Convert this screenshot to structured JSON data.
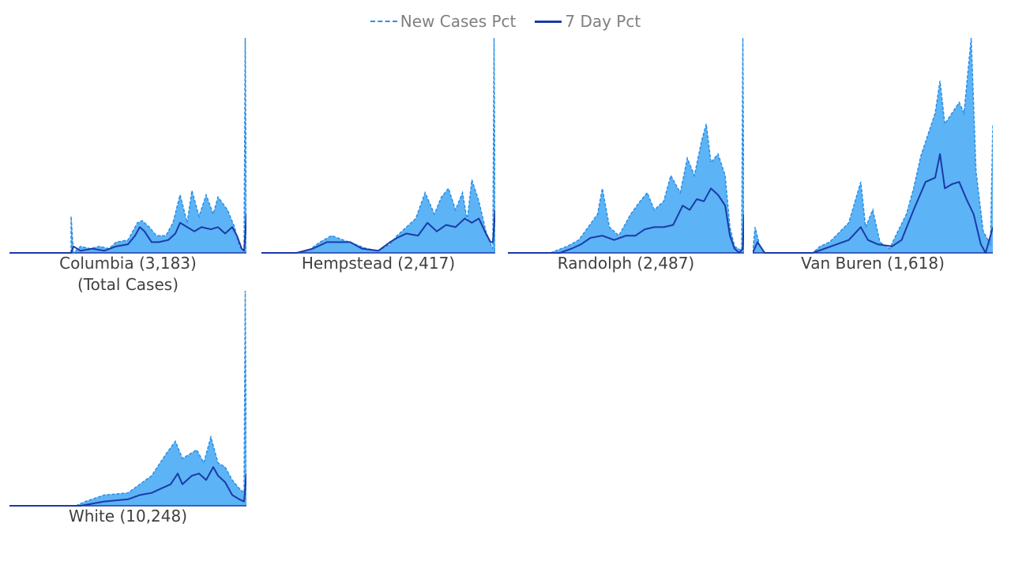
{
  "legend": {
    "new_cases_label": "New Cases Pct",
    "seven_day_label": "7 Day Pct"
  },
  "colors": {
    "area_fill": "#5cb3f5",
    "new_cases_line": "#2b8fe6",
    "seven_day_line": "#1c3aa8",
    "baseline": "#1c3aa8",
    "label_text": "#404040",
    "legend_text": "#7f7f7f"
  },
  "chart_data": [
    {
      "type": "area",
      "county": "Columbia",
      "total_cases": "3,183",
      "label": "Columbia (3,183)",
      "sublabel": "(Total Cases)",
      "series": [
        {
          "name": "New Cases Pct",
          "keys": [
            [
              0.0,
              0
            ],
            [
              0.09,
              0
            ],
            [
              0.1,
              0.2
            ],
            [
              0.11,
              0
            ],
            [
              0.18,
              0
            ],
            [
              0.26,
              0
            ],
            [
              0.26,
              17
            ],
            [
              0.27,
              0
            ],
            [
              0.3,
              3
            ],
            [
              0.34,
              2
            ],
            [
              0.38,
              3
            ],
            [
              0.42,
              2
            ],
            [
              0.45,
              5
            ],
            [
              0.5,
              6
            ],
            [
              0.54,
              14
            ],
            [
              0.56,
              15
            ],
            [
              0.59,
              12
            ],
            [
              0.62,
              8
            ],
            [
              0.66,
              8
            ],
            [
              0.69,
              14
            ],
            [
              0.72,
              27
            ],
            [
              0.75,
              14
            ],
            [
              0.77,
              29
            ],
            [
              0.8,
              17
            ],
            [
              0.83,
              27
            ],
            [
              0.86,
              18
            ],
            [
              0.88,
              26
            ],
            [
              0.92,
              20
            ],
            [
              0.95,
              12
            ],
            [
              0.97,
              3
            ],
            [
              0.99,
              1
            ],
            [
              0.995,
              100
            ],
            [
              1.0,
              0
            ]
          ]
        },
        {
          "name": "7 Day Pct",
          "keys": [
            [
              0.0,
              0
            ],
            [
              0.26,
              0
            ],
            [
              0.27,
              3
            ],
            [
              0.3,
              1
            ],
            [
              0.35,
              2
            ],
            [
              0.4,
              1
            ],
            [
              0.45,
              3
            ],
            [
              0.5,
              4
            ],
            [
              0.53,
              8
            ],
            [
              0.55,
              12
            ],
            [
              0.57,
              10
            ],
            [
              0.6,
              5
            ],
            [
              0.63,
              5
            ],
            [
              0.67,
              6
            ],
            [
              0.7,
              9
            ],
            [
              0.72,
              14
            ],
            [
              0.75,
              12
            ],
            [
              0.78,
              10
            ],
            [
              0.81,
              12
            ],
            [
              0.85,
              11
            ],
            [
              0.88,
              12
            ],
            [
              0.91,
              9
            ],
            [
              0.94,
              12
            ],
            [
              0.96,
              8
            ],
            [
              0.98,
              2
            ],
            [
              0.99,
              1
            ],
            [
              0.995,
              8
            ],
            [
              1.0,
              18
            ]
          ]
        }
      ]
    },
    {
      "type": "area",
      "county": "Hempstead",
      "total_cases": "2,417",
      "label": "Hempstead (2,417)",
      "sublabel": "",
      "series": [
        {
          "name": "New Cases Pct",
          "keys": [
            [
              0.0,
              0
            ],
            [
              0.15,
              0
            ],
            [
              0.2,
              1
            ],
            [
              0.25,
              5
            ],
            [
              0.3,
              8
            ],
            [
              0.35,
              6
            ],
            [
              0.4,
              4
            ],
            [
              0.45,
              2
            ],
            [
              0.5,
              1
            ],
            [
              0.55,
              4
            ],
            [
              0.58,
              8
            ],
            [
              0.62,
              12
            ],
            [
              0.66,
              16
            ],
            [
              0.7,
              28
            ],
            [
              0.74,
              18
            ],
            [
              0.77,
              26
            ],
            [
              0.8,
              30
            ],
            [
              0.83,
              20
            ],
            [
              0.86,
              28
            ],
            [
              0.88,
              15
            ],
            [
              0.9,
              34
            ],
            [
              0.93,
              24
            ],
            [
              0.96,
              10
            ],
            [
              0.98,
              4
            ],
            [
              0.99,
              2
            ],
            [
              0.995,
              100
            ],
            [
              1.0,
              0
            ]
          ]
        },
        {
          "name": "7 Day Pct",
          "keys": [
            [
              0.0,
              0
            ],
            [
              0.15,
              0
            ],
            [
              0.22,
              2
            ],
            [
              0.28,
              5
            ],
            [
              0.33,
              5
            ],
            [
              0.38,
              5
            ],
            [
              0.43,
              2
            ],
            [
              0.5,
              1
            ],
            [
              0.55,
              5
            ],
            [
              0.58,
              7
            ],
            [
              0.62,
              9
            ],
            [
              0.67,
              8
            ],
            [
              0.71,
              14
            ],
            [
              0.75,
              10
            ],
            [
              0.79,
              13
            ],
            [
              0.83,
              12
            ],
            [
              0.87,
              16
            ],
            [
              0.9,
              14
            ],
            [
              0.93,
              16
            ],
            [
              0.96,
              9
            ],
            [
              0.98,
              5
            ],
            [
              0.99,
              5
            ],
            [
              1.0,
              20
            ]
          ]
        }
      ]
    },
    {
      "type": "area",
      "county": "Randolph",
      "total_cases": "2,487",
      "label": "Randolph (2,487)",
      "sublabel": "",
      "series": [
        {
          "name": "New Cases Pct",
          "keys": [
            [
              0.0,
              0
            ],
            [
              0.18,
              0
            ],
            [
              0.25,
              3
            ],
            [
              0.3,
              6
            ],
            [
              0.34,
              12
            ],
            [
              0.38,
              18
            ],
            [
              0.4,
              30
            ],
            [
              0.43,
              12
            ],
            [
              0.47,
              8
            ],
            [
              0.52,
              18
            ],
            [
              0.56,
              24
            ],
            [
              0.59,
              28
            ],
            [
              0.62,
              20
            ],
            [
              0.66,
              24
            ],
            [
              0.69,
              36
            ],
            [
              0.73,
              28
            ],
            [
              0.76,
              44
            ],
            [
              0.79,
              36
            ],
            [
              0.82,
              52
            ],
            [
              0.84,
              60
            ],
            [
              0.86,
              42
            ],
            [
              0.89,
              46
            ],
            [
              0.92,
              36
            ],
            [
              0.94,
              12
            ],
            [
              0.96,
              3
            ],
            [
              0.99,
              1
            ],
            [
              0.995,
              100
            ],
            [
              1.0,
              0
            ]
          ]
        },
        {
          "name": "7 Day Pct",
          "keys": [
            [
              0.0,
              0
            ],
            [
              0.22,
              0
            ],
            [
              0.27,
              2
            ],
            [
              0.31,
              4
            ],
            [
              0.35,
              7
            ],
            [
              0.4,
              8
            ],
            [
              0.45,
              6
            ],
            [
              0.5,
              8
            ],
            [
              0.54,
              8
            ],
            [
              0.58,
              11
            ],
            [
              0.62,
              12
            ],
            [
              0.66,
              12
            ],
            [
              0.7,
              13
            ],
            [
              0.74,
              22
            ],
            [
              0.77,
              20
            ],
            [
              0.8,
              25
            ],
            [
              0.83,
              24
            ],
            [
              0.86,
              30
            ],
            [
              0.89,
              27
            ],
            [
              0.92,
              22
            ],
            [
              0.94,
              8
            ],
            [
              0.96,
              2
            ],
            [
              0.98,
              0
            ],
            [
              0.995,
              2
            ],
            [
              1.0,
              18
            ]
          ]
        }
      ]
    },
    {
      "type": "area",
      "county": "Van Buren",
      "total_cases": "1,618",
      "label": "Van Buren (1,618)",
      "sublabel": "",
      "series": [
        {
          "name": "New Cases Pct",
          "keys": [
            [
              0.0,
              0
            ],
            [
              0.01,
              12
            ],
            [
              0.03,
              3
            ],
            [
              0.05,
              0
            ],
            [
              0.25,
              0
            ],
            [
              0.28,
              3
            ],
            [
              0.32,
              5
            ],
            [
              0.4,
              14
            ],
            [
              0.45,
              33
            ],
            [
              0.47,
              12
            ],
            [
              0.5,
              20
            ],
            [
              0.53,
              5
            ],
            [
              0.57,
              2
            ],
            [
              0.6,
              9
            ],
            [
              0.64,
              18
            ],
            [
              0.67,
              30
            ],
            [
              0.7,
              45
            ],
            [
              0.73,
              55
            ],
            [
              0.76,
              65
            ],
            [
              0.78,
              80
            ],
            [
              0.8,
              60
            ],
            [
              0.83,
              65
            ],
            [
              0.86,
              70
            ],
            [
              0.88,
              65
            ],
            [
              0.91,
              100
            ],
            [
              0.93,
              38
            ],
            [
              0.96,
              10
            ],
            [
              0.99,
              4
            ],
            [
              1.0,
              60
            ]
          ]
        },
        {
          "name": "7 Day Pct",
          "keys": [
            [
              0.0,
              0
            ],
            [
              0.02,
              5
            ],
            [
              0.05,
              0
            ],
            [
              0.25,
              0
            ],
            [
              0.4,
              6
            ],
            [
              0.45,
              12
            ],
            [
              0.48,
              6
            ],
            [
              0.52,
              4
            ],
            [
              0.58,
              3
            ],
            [
              0.62,
              6
            ],
            [
              0.67,
              20
            ],
            [
              0.72,
              33
            ],
            [
              0.76,
              35
            ],
            [
              0.78,
              46
            ],
            [
              0.8,
              30
            ],
            [
              0.83,
              32
            ],
            [
              0.86,
              33
            ],
            [
              0.89,
              25
            ],
            [
              0.92,
              18
            ],
            [
              0.95,
              4
            ],
            [
              0.97,
              0
            ],
            [
              1.0,
              12
            ]
          ]
        }
      ]
    },
    {
      "type": "area",
      "county": "White",
      "total_cases": "10,248",
      "label": "White (10,248)",
      "sublabel": "",
      "series": [
        {
          "name": "New Cases Pct",
          "keys": [
            [
              0.0,
              0
            ],
            [
              0.28,
              0
            ],
            [
              0.32,
              2
            ],
            [
              0.4,
              5
            ],
            [
              0.5,
              6
            ],
            [
              0.55,
              10
            ],
            [
              0.6,
              14
            ],
            [
              0.66,
              24
            ],
            [
              0.7,
              30
            ],
            [
              0.73,
              22
            ],
            [
              0.76,
              24
            ],
            [
              0.79,
              26
            ],
            [
              0.82,
              20
            ],
            [
              0.85,
              32
            ],
            [
              0.88,
              20
            ],
            [
              0.91,
              18
            ],
            [
              0.94,
              12
            ],
            [
              0.97,
              8
            ],
            [
              0.99,
              6
            ],
            [
              0.995,
              100
            ],
            [
              1.0,
              0
            ]
          ]
        },
        {
          "name": "7 Day Pct",
          "keys": [
            [
              0.0,
              0
            ],
            [
              0.3,
              0
            ],
            [
              0.4,
              2
            ],
            [
              0.5,
              3
            ],
            [
              0.55,
              5
            ],
            [
              0.6,
              6
            ],
            [
              0.64,
              8
            ],
            [
              0.68,
              10
            ],
            [
              0.71,
              15
            ],
            [
              0.73,
              10
            ],
            [
              0.77,
              14
            ],
            [
              0.8,
              15
            ],
            [
              0.83,
              12
            ],
            [
              0.86,
              18
            ],
            [
              0.88,
              14
            ],
            [
              0.91,
              11
            ],
            [
              0.94,
              5
            ],
            [
              0.97,
              3
            ],
            [
              0.99,
              2
            ],
            [
              1.0,
              15
            ]
          ]
        }
      ]
    }
  ]
}
